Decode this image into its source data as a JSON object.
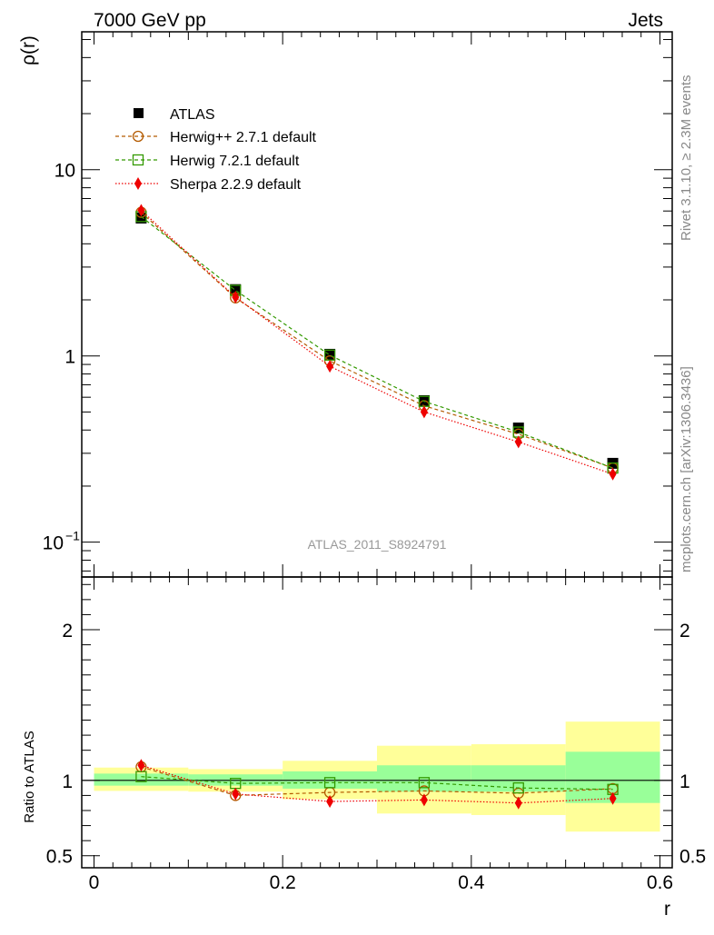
{
  "header": {
    "energy_label": "7000 GeV pp",
    "process_label": "Jets"
  },
  "side_labels": {
    "rivet": "Rivet 3.1.10, ≥ 2.3M events",
    "mcplots": "mcplots.cern.ch [arXiv:1306.3436]"
  },
  "analysis_id": "ATLAS_2011_S8924791",
  "chart_data": [
    {
      "type": "line",
      "panel": "main",
      "ylabel": "ρ(r)",
      "xlabel": "r",
      "yscale": "log",
      "ylim": [
        0.065,
        55
      ],
      "xlim": [
        -0.013,
        0.613
      ],
      "x": [
        0.05,
        0.15,
        0.25,
        0.35,
        0.45,
        0.55
      ],
      "ytick_labels": [
        {
          "value": 10,
          "label": "10"
        },
        {
          "value": 1,
          "label": "1"
        },
        {
          "value": 0.1,
          "label": "10",
          "exp": "−1"
        }
      ],
      "series": [
        {
          "name": "ATLAS",
          "values": [
            5.5,
            2.27,
            1.02,
            0.575,
            0.41,
            0.265
          ],
          "color": "#000000",
          "marker": "square-filled",
          "line": "none"
        },
        {
          "name": "Herwig++ 2.7.1 default",
          "values": [
            5.9,
            2.05,
            0.94,
            0.54,
            0.38,
            0.25
          ],
          "color": "#b35a00",
          "marker": "circle-open",
          "line": "dashed"
        },
        {
          "name": "Herwig 7.2.1 default",
          "values": [
            5.6,
            2.25,
            1.01,
            0.57,
            0.39,
            0.25
          ],
          "color": "#339900",
          "marker": "square-open",
          "line": "dashed"
        },
        {
          "name": "Sherpa 2.2.9 default",
          "values": [
            6.05,
            2.07,
            0.88,
            0.5,
            0.345,
            0.232
          ],
          "color": "#ee0000",
          "marker": "diamond-filled",
          "line": "dotted"
        }
      ]
    },
    {
      "type": "line",
      "panel": "ratio",
      "ylabel": "Ratio to ATLAS",
      "xlabel": "r",
      "ylim": [
        0.42,
        2.35
      ],
      "xlim": [
        -0.013,
        0.613
      ],
      "x": [
        0.05,
        0.15,
        0.25,
        0.35,
        0.45,
        0.55
      ],
      "xticks": [
        0,
        0.2,
        0.4,
        0.6
      ],
      "xtick_labels": [
        "0",
        "0.2",
        "0.4",
        "0.6"
      ],
      "yticks": [
        0.5,
        1,
        2
      ],
      "ytick_labels": [
        "0.5",
        "1",
        "2"
      ],
      "bands": [
        {
          "x0": 0.0,
          "x1": 0.1,
          "stat_lo": 0.965,
          "stat_hi": 1.045,
          "tot_lo": 0.93,
          "tot_hi": 1.085
        },
        {
          "x0": 0.1,
          "x1": 0.2,
          "stat_lo": 0.965,
          "stat_hi": 1.04,
          "tot_lo": 0.925,
          "tot_hi": 1.075
        },
        {
          "x0": 0.2,
          "x1": 0.3,
          "stat_lo": 0.945,
          "stat_hi": 1.06,
          "tot_lo": 0.875,
          "tot_hi": 1.13
        },
        {
          "x0": 0.3,
          "x1": 0.4,
          "stat_lo": 0.925,
          "stat_hi": 1.1,
          "tot_lo": 0.78,
          "tot_hi": 1.23
        },
        {
          "x0": 0.4,
          "x1": 0.5,
          "stat_lo": 0.925,
          "stat_hi": 1.1,
          "tot_lo": 0.77,
          "tot_hi": 1.24
        },
        {
          "x0": 0.5,
          "x1": 0.6,
          "stat_lo": 0.85,
          "stat_hi": 1.19,
          "tot_lo": 0.66,
          "tot_hi": 1.39
        }
      ],
      "series": [
        {
          "name": "Herwig++ 2.7.1 default",
          "values": [
            1.09,
            0.9,
            0.92,
            0.93,
            0.915,
            0.945
          ],
          "color": "#b35a00",
          "marker": "circle-open",
          "line": "dashed"
        },
        {
          "name": "Herwig 7.2.1 default",
          "values": [
            1.025,
            0.98,
            0.985,
            0.985,
            0.95,
            0.94
          ],
          "color": "#339900",
          "marker": "square-open",
          "line": "dashed"
        },
        {
          "name": "Sherpa 2.2.9 default",
          "values": [
            1.1,
            0.91,
            0.86,
            0.87,
            0.85,
            0.88
          ],
          "color": "#ee0000",
          "marker": "diamond-filled",
          "line": "dotted"
        }
      ]
    }
  ]
}
